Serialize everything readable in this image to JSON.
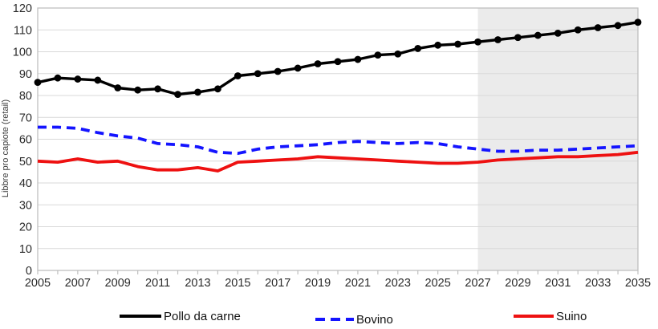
{
  "chart_data": {
    "type": "line",
    "title": "",
    "xlabel": "",
    "ylabel": "Libbre pro capiote (retail)",
    "x": [
      2005,
      2006,
      2007,
      2008,
      2009,
      2010,
      2011,
      2012,
      2013,
      2014,
      2015,
      2016,
      2017,
      2018,
      2019,
      2020,
      2021,
      2022,
      2023,
      2024,
      2025,
      2026,
      2027,
      2028,
      2029,
      2030,
      2031,
      2032,
      2033,
      2034,
      2035
    ],
    "x_tick_labels": [
      "2005",
      "2007",
      "2009",
      "2011",
      "2013",
      "2015",
      "2017",
      "2019",
      "2021",
      "2023",
      "2025",
      "2027",
      "2029",
      "2031",
      "2033",
      "2035"
    ],
    "y_ticks": [
      0,
      10,
      20,
      30,
      40,
      50,
      60,
      70,
      80,
      90,
      100,
      110,
      120
    ],
    "ylim": [
      0,
      120
    ],
    "grid": "horizontal",
    "legend_position": "bottom",
    "forecast_region": {
      "start": 2027,
      "end": 2035,
      "color": "#ebebeb"
    },
    "series": [
      {
        "name": "Pollo da carne",
        "color": "#000000",
        "style": "solid",
        "markers": true,
        "values": [
          86,
          88,
          87.5,
          87,
          83.5,
          82.5,
          83,
          80.5,
          81.5,
          83,
          89,
          90,
          91,
          92.5,
          94.5,
          95.5,
          96.5,
          98.5,
          99,
          101.5,
          103,
          103.5,
          104.5,
          105.5,
          106.5,
          107.5,
          108.5,
          110,
          111,
          112,
          113.5
        ]
      },
      {
        "name": "Bovino",
        "color": "#1414ff",
        "style": "dashed",
        "markers": false,
        "values": [
          65.5,
          65.5,
          65,
          63,
          61.5,
          60.5,
          58,
          57.5,
          56.5,
          54,
          53.5,
          55.5,
          56.5,
          57,
          57.5,
          58.5,
          59,
          58.5,
          58,
          58.5,
          58,
          56.5,
          55.5,
          54.5,
          54.5,
          55,
          55,
          55.5,
          56,
          56.5,
          57
        ]
      },
      {
        "name": "Suino",
        "color": "#ee1111",
        "style": "solid",
        "markers": false,
        "values": [
          50,
          49.5,
          51,
          49.5,
          50,
          47.5,
          46,
          46,
          47,
          45.5,
          49.5,
          50,
          50.5,
          51,
          52,
          51.5,
          51,
          50.5,
          50,
          49.5,
          49,
          49,
          49.5,
          50.5,
          51,
          51.5,
          52,
          52,
          52.5,
          53,
          54
        ]
      }
    ],
    "colors": {
      "gridline": "#d9d9d9",
      "axis": "#bfbfbf",
      "tick_label": "#2b2b2b",
      "plot_background": "#ffffff",
      "forecast_shading": "#ebebeb"
    }
  }
}
